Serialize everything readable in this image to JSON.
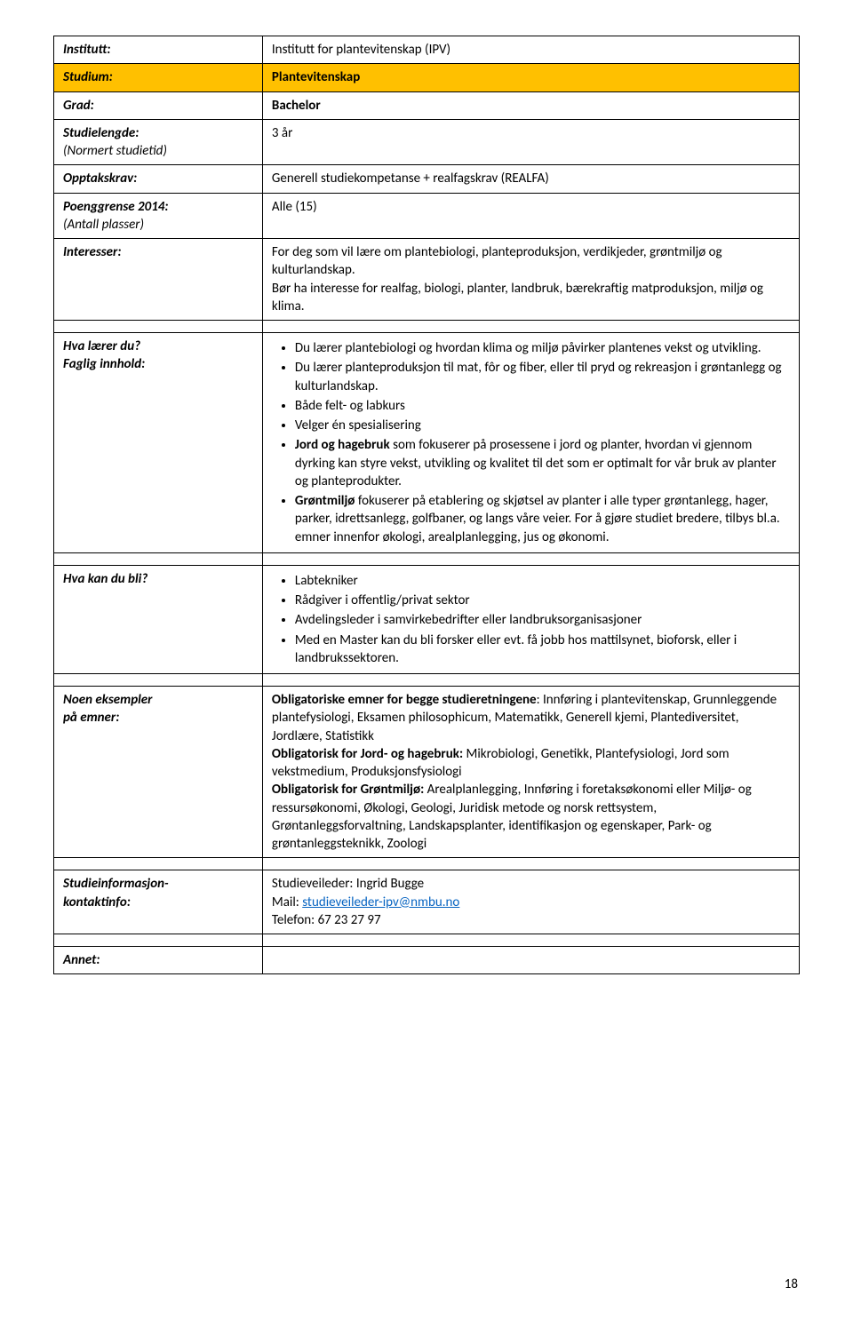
{
  "row1": {
    "label": "Institutt:",
    "value": "Institutt for plantevitenskap (IPV)"
  },
  "row2": {
    "label": "Studium:",
    "value": "Plantevitenskap"
  },
  "row3": {
    "label": "Grad:",
    "value": "Bachelor"
  },
  "row4": {
    "label_main": "Studielengde:",
    "label_sub": "(Normert studietid)",
    "value": "3 år"
  },
  "row5": {
    "label": "Opptakskrav:",
    "value": "Generell studiekompetanse + realfagskrav (REALFA)"
  },
  "row6": {
    "label_main": "Poenggrense 2014:",
    "label_sub": "(Antall plasser)",
    "value": "Alle (15)"
  },
  "row7": {
    "label": "Interesser:",
    "text1": "For deg som vil lære om plantebiologi, planteproduksjon, verdikjeder, grøntmiljø og kulturlandskap.",
    "text2": "Bør ha interesse for realfag, biologi, planter, landbruk, bærekraftig matproduksjon, miljø og klima."
  },
  "row8": {
    "label_main": "Hva lærer du?",
    "label_sub": "Faglig innhold:",
    "b1": "Du lærer plantebiologi og hvordan klima og miljø påvirker plantenes vekst og utvikling.",
    "b2": "Du lærer planteproduksjon til mat, fôr og fiber, eller til pryd og rekreasjon i grøntanlegg og kulturlandskap.",
    "b3": "Både felt- og labkurs",
    "b4": "Velger én spesialisering",
    "b5_b": "Jord og hagebruk",
    "b5_r": " som fokuserer på prosessene i jord og planter, hvordan vi gjennom dyrking kan styre vekst, utvikling og kvalitet til det som er optimalt for vår bruk av planter og planteprodukter.",
    "b6_b": "Grøntmiljø",
    "b6_r": " fokuserer på etablering og skjøtsel av planter i alle typer grøntanlegg, hager, parker, idrettsanlegg, golfbaner, og langs våre veier. For å gjøre studiet bredere, tilbys bl.a. emner innenfor økologi, arealplanlegging, jus og økonomi."
  },
  "row9": {
    "label": "Hva kan du bli?",
    "b1": "Labtekniker",
    "b2": "Rådgiver i offentlig/privat sektor",
    "b3": "Avdelingsleder i samvirkebedrifter eller landbruksorganisasjoner",
    "b4": "Med en Master kan du bli forsker eller evt. få jobb hos mattilsynet, bioforsk, eller i landbrukssektoren."
  },
  "row10": {
    "label_main": "Noen eksempler",
    "label_sub": "på emner:",
    "p1_b": "Obligatoriske emner for begge studieretningene",
    "p1_r": ": Innføring i plantevitenskap, Grunnleggende plantefysiologi, Eksamen philosophicum, Matematikk, Generell kjemi, Plantediversitet, Jordlære, Statistikk",
    "p2_b": "Obligatorisk for Jord- og hagebruk:",
    "p2_r": " Mikrobiologi, Genetikk, Plantefysiologi, Jord som vekstmedium, Produksjonsfysiologi",
    "p3_b": "Obligatorisk for Grøntmiljø:",
    "p3_r": " Arealplanlegging, Innføring i foretaksøkonomi eller Miljø- og ressursøkonomi, Økologi, Geologi, Juridisk metode og norsk rettsystem, Grøntanleggsforvaltning, Landskapsplanter, identifikasjon og egenskaper, Park- og grøntanleggsteknikk, Zoologi"
  },
  "row11": {
    "label_main": "Studieinformasjon-",
    "label_sub": "kontaktinfo:",
    "l1": "Studieveileder: Ingrid Bugge",
    "l2_pre": "Mail: ",
    "l2_link": "studieveileder-ipv@nmbu.no",
    "l3": "Telefon: 67 23 27 97"
  },
  "row12": {
    "label": "Annet:"
  },
  "page": "18"
}
